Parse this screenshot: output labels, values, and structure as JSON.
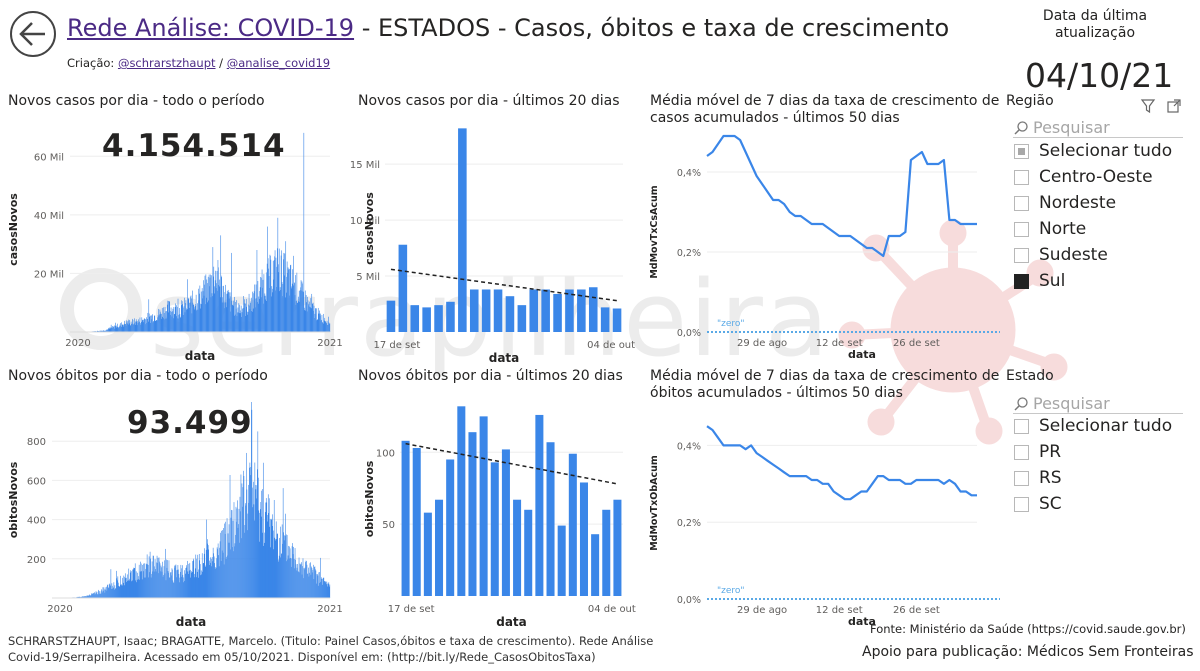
{
  "header": {
    "back_icon": "back-arrow-icon",
    "title_link": "Rede Análise: COVID-19",
    "title_rest": " - ESTADOS - Casos, óbitos e taxa de crescimento",
    "credit_prefix": "Criação: ",
    "credit_link1": "@schrarstzhaupt",
    "credit_sep": " / ",
    "credit_link2": "@analise_covid19",
    "update_label_line1": "Data da última",
    "update_label_line2": "atualização",
    "update_date": "04/10/21"
  },
  "watermark": "serrapilheira",
  "totals": {
    "cases": "4.154.514",
    "deaths": "93.499"
  },
  "slicers": {
    "regiao": {
      "title": "Região",
      "search_placeholder": "Pesquisar",
      "filter_icon": "filter-icon",
      "expand_icon": "focus-mode-icon",
      "items": [
        {
          "label": "Selecionar tudo",
          "state": "partial"
        },
        {
          "label": "Centro-Oeste",
          "state": "unchecked"
        },
        {
          "label": "Nordeste",
          "state": "unchecked"
        },
        {
          "label": "Norte",
          "state": "unchecked"
        },
        {
          "label": "Sudeste",
          "state": "unchecked"
        },
        {
          "label": "Sul",
          "state": "checked"
        }
      ]
    },
    "estado": {
      "title": "Estado",
      "search_placeholder": "Pesquisar",
      "items": [
        {
          "label": "Selecionar tudo",
          "state": "unchecked"
        },
        {
          "label": "PR",
          "state": "unchecked"
        },
        {
          "label": "RS",
          "state": "unchecked"
        },
        {
          "label": "SC",
          "state": "unchecked"
        }
      ]
    }
  },
  "footer": {
    "citation_line1": "SCHRARSTZHAUPT, Isaac; BRAGATTE, Marcelo. (Titulo: Painel Casos,óbitos e taxa de crescimento). Rede Análise",
    "citation_line2": "Covid-19/Serrapilheira. Acessado em 05/10/2021. Disponível em: (http://bit.ly/Rede_CasosObitosTaxa)",
    "source": "Fonte: Ministério da Saúde (https://covid.saude.gov.br)",
    "support": "Apoio para publicação: Médicos Sem Fronteiras"
  },
  "colors": {
    "bar": "#3a86e8",
    "line": "#3a86e8",
    "trend": "#222222",
    "zero": "#5aa9e6",
    "title_link": "#4b2a85"
  },
  "chart_data": [
    {
      "id": "cases_all",
      "type": "bar",
      "title": "Novos casos por dia - todo o período",
      "xlabel": "data",
      "ylabel": "casosNovos",
      "xticks": [
        "2020",
        "2021"
      ],
      "yticks": [
        "20 Mil",
        "40 Mil",
        "60 Mil"
      ],
      "ytick_values": [
        20000,
        40000,
        60000
      ],
      "ylim": [
        0,
        70000
      ],
      "x_range": [
        "2020-03",
        "2021-10"
      ],
      "anchors": [
        [
          0,
          0
        ],
        [
          0.04,
          0
        ],
        [
          0.08,
          150
        ],
        [
          0.13,
          500
        ],
        [
          0.18,
          2000
        ],
        [
          0.22,
          3200
        ],
        [
          0.26,
          3500
        ],
        [
          0.3,
          4800
        ],
        [
          0.34,
          6000
        ],
        [
          0.38,
          8000
        ],
        [
          0.42,
          7500
        ],
        [
          0.46,
          9500
        ],
        [
          0.5,
          12000
        ],
        [
          0.53,
          15000
        ],
        [
          0.56,
          19500
        ],
        [
          0.6,
          12000
        ],
        [
          0.64,
          8000
        ],
        [
          0.68,
          8500
        ],
        [
          0.72,
          13000
        ],
        [
          0.76,
          18000
        ],
        [
          0.8,
          22000
        ],
        [
          0.84,
          18000
        ],
        [
          0.88,
          14000
        ],
        [
          0.92,
          9000
        ],
        [
          0.96,
          5500
        ],
        [
          1.0,
          3500
        ]
      ],
      "spikes": [
        [
          0.45,
          18000
        ],
        [
          0.55,
          29000
        ],
        [
          0.58,
          33000
        ],
        [
          0.62,
          27000
        ],
        [
          0.72,
          28000
        ],
        [
          0.76,
          36000
        ],
        [
          0.8,
          39000
        ],
        [
          0.83,
          31000
        ],
        [
          0.86,
          26000
        ],
        [
          0.9,
          68000
        ],
        [
          0.93,
          13000
        ]
      ]
    },
    {
      "id": "cases_20d",
      "type": "bar",
      "title": "Novos casos por dia - últimos 20 dias",
      "xlabel": "data",
      "ylabel": "casosNovos",
      "xticks": [
        "17 de set",
        "04 de out"
      ],
      "yticks": [
        "5 Mil",
        "10 Mil",
        "15 Mil"
      ],
      "ytick_values": [
        5000,
        10000,
        15000
      ],
      "ylim": [
        0,
        18500
      ],
      "values": [
        2800,
        7800,
        2400,
        2200,
        2400,
        2700,
        18200,
        3800,
        3800,
        3800,
        3200,
        2400,
        3800,
        3800,
        3400,
        3800,
        3800,
        4000,
        2200,
        2100
      ],
      "trend": [
        5600,
        2800
      ]
    },
    {
      "id": "cases_growth",
      "type": "line",
      "title": "Média móvel de 7 dias da taxa de crescimento de casos acumulados - últimos 50 dias",
      "title_line1": "Média móvel de 7 dias da taxa de crescimento de",
      "title_line2": "casos acumulados - últimos 50 dias",
      "xlabel": "data",
      "ylabel": "MdMovTxCsAcum",
      "xticks": [
        "29 de ago",
        "12 de set",
        "26 de set"
      ],
      "xtick_idx": [
        10,
        24,
        38
      ],
      "yticks": [
        "0,0%",
        "0,2%",
        "0,4%"
      ],
      "ytick_values": [
        0,
        0.2,
        0.4
      ],
      "ylim": [
        0,
        0.5
      ],
      "zero_label": "\"zero\"",
      "values": [
        0.44,
        0.45,
        0.47,
        0.49,
        0.49,
        0.49,
        0.48,
        0.45,
        0.42,
        0.39,
        0.37,
        0.35,
        0.33,
        0.33,
        0.32,
        0.3,
        0.29,
        0.29,
        0.28,
        0.27,
        0.27,
        0.27,
        0.26,
        0.25,
        0.24,
        0.24,
        0.24,
        0.23,
        0.22,
        0.21,
        0.21,
        0.2,
        0.19,
        0.24,
        0.24,
        0.24,
        0.25,
        0.43,
        0.44,
        0.45,
        0.42,
        0.42,
        0.42,
        0.43,
        0.28,
        0.28,
        0.27,
        0.27,
        0.27,
        0.27
      ]
    },
    {
      "id": "deaths_all",
      "type": "bar",
      "title": "Novos óbitos por dia - todo o período",
      "xlabel": "data",
      "ylabel": "obitosNovos",
      "xticks": [
        "2020",
        "2021"
      ],
      "yticks": [
        "200",
        "400",
        "600",
        "800"
      ],
      "ytick_values": [
        200,
        400,
        600,
        800
      ],
      "ylim": [
        0,
        1000
      ],
      "x_range": [
        "2020-03",
        "2021-10"
      ],
      "anchors": [
        [
          0,
          0
        ],
        [
          0.05,
          0
        ],
        [
          0.1,
          5
        ],
        [
          0.15,
          20
        ],
        [
          0.2,
          50
        ],
        [
          0.25,
          90
        ],
        [
          0.3,
          130
        ],
        [
          0.35,
          170
        ],
        [
          0.4,
          150
        ],
        [
          0.45,
          120
        ],
        [
          0.5,
          150
        ],
        [
          0.55,
          190
        ],
        [
          0.6,
          230
        ],
        [
          0.64,
          330
        ],
        [
          0.68,
          440
        ],
        [
          0.72,
          550
        ],
        [
          0.76,
          440
        ],
        [
          0.8,
          330
        ],
        [
          0.84,
          260
        ],
        [
          0.88,
          200
        ],
        [
          0.92,
          150
        ],
        [
          0.96,
          100
        ],
        [
          1.0,
          60
        ]
      ],
      "spikes": [
        [
          0.56,
          300
        ],
        [
          0.62,
          380
        ],
        [
          0.68,
          630
        ],
        [
          0.7,
          740
        ],
        [
          0.72,
          960
        ],
        [
          0.74,
          850
        ],
        [
          0.76,
          690
        ],
        [
          0.8,
          500
        ],
        [
          0.84,
          430
        ]
      ]
    },
    {
      "id": "deaths_20d",
      "type": "bar",
      "title": "Novos óbitos por dia - últimos 20 dias",
      "xlabel": "data",
      "ylabel": "obitosNovos",
      "xticks": [
        "17 de set",
        "04 de out"
      ],
      "yticks": [
        "50",
        "100"
      ],
      "ytick_values": [
        50,
        100
      ],
      "ylim": [
        0,
        135
      ],
      "values": [
        108,
        103,
        58,
        67,
        95,
        132,
        114,
        125,
        93,
        102,
        67,
        60,
        126,
        107,
        49,
        99,
        79,
        43,
        60,
        67
      ],
      "trend": [
        106,
        78
      ]
    },
    {
      "id": "deaths_growth",
      "type": "line",
      "title": "Média móvel de 7 dias da taxa de crescimento de óbitos acumulados - últimos 50 dias",
      "title_line1": "Média móvel de 7 dias da taxa de crescimento de",
      "title_line2": "óbitos acumulados - últimos 50 dias",
      "xlabel": "data",
      "ylabel": "MdMovTxObAcum",
      "xticks": [
        "29 de ago",
        "12 de set",
        "26 de set"
      ],
      "xtick_idx": [
        10,
        24,
        38
      ],
      "yticks": [
        "0,0%",
        "0,2%",
        "0,4%"
      ],
      "ytick_values": [
        0,
        0.2,
        0.4
      ],
      "ylim": [
        0,
        0.5
      ],
      "zero_label": "\"zero\"",
      "values": [
        0.45,
        0.44,
        0.42,
        0.4,
        0.4,
        0.4,
        0.4,
        0.39,
        0.4,
        0.38,
        0.37,
        0.36,
        0.35,
        0.34,
        0.33,
        0.32,
        0.32,
        0.32,
        0.32,
        0.31,
        0.31,
        0.3,
        0.3,
        0.28,
        0.27,
        0.26,
        0.26,
        0.27,
        0.28,
        0.28,
        0.3,
        0.32,
        0.32,
        0.31,
        0.31,
        0.31,
        0.3,
        0.3,
        0.31,
        0.31,
        0.31,
        0.31,
        0.31,
        0.3,
        0.31,
        0.3,
        0.28,
        0.28,
        0.27,
        0.27
      ]
    }
  ]
}
